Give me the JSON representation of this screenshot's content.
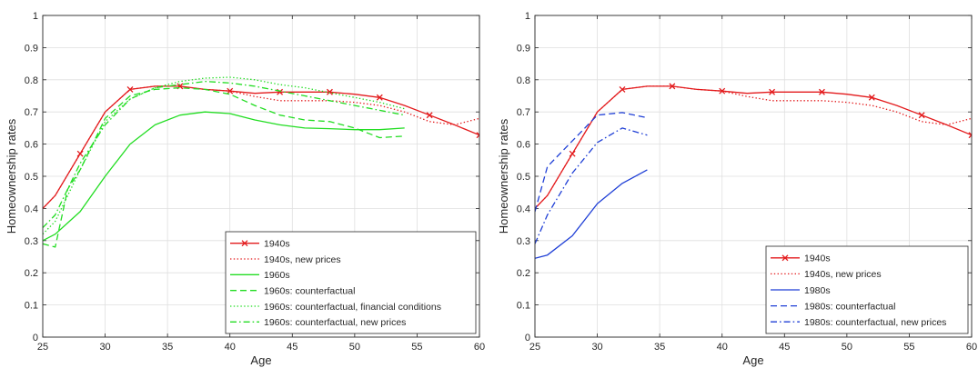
{
  "chart_data": [
    {
      "type": "line",
      "xlabel": "Age",
      "ylabel": "Homeownership rates",
      "xlim": [
        25,
        60
      ],
      "ylim": [
        0,
        1
      ],
      "xticks": [
        25,
        30,
        35,
        40,
        45,
        50,
        55,
        60
      ],
      "yticks": [
        0,
        0.1,
        0.2,
        0.3,
        0.4,
        0.5,
        0.6,
        0.7,
        0.8,
        0.9,
        1
      ],
      "grid": true,
      "legend_position": "bottom-right",
      "series": [
        {
          "name": "1940s",
          "color": "#e31a1c",
          "dash": "solid",
          "marker": "x",
          "x": [
            25,
            26,
            28,
            30,
            32,
            34,
            36,
            38,
            40,
            42,
            44,
            46,
            48,
            50,
            52,
            54,
            56,
            58,
            60
          ],
          "y": [
            0.4,
            0.44,
            0.57,
            0.7,
            0.77,
            0.78,
            0.78,
            0.77,
            0.765,
            0.758,
            0.762,
            0.762,
            0.762,
            0.755,
            0.745,
            0.72,
            0.69,
            0.66,
            0.628
          ],
          "marker_x": [
            28,
            32,
            36,
            40,
            44,
            48,
            52,
            56,
            60
          ]
        },
        {
          "name": "1940s, new prices",
          "color": "#e31a1c",
          "dash": "dotted",
          "marker": "none",
          "x": [
            25,
            26,
            28,
            30,
            32,
            34,
            36,
            38,
            40,
            42,
            44,
            46,
            48,
            50,
            52,
            54,
            56,
            58,
            60
          ],
          "y": [
            0.4,
            0.44,
            0.57,
            0.7,
            0.77,
            0.78,
            0.78,
            0.77,
            0.765,
            0.748,
            0.735,
            0.735,
            0.735,
            0.73,
            0.72,
            0.7,
            0.67,
            0.66,
            0.68
          ]
        },
        {
          "name": "1960s",
          "color": "#22dd22",
          "dash": "solid",
          "marker": "none",
          "x": [
            25,
            26,
            28,
            30,
            32,
            34,
            36,
            38,
            40,
            42,
            44,
            46,
            48,
            50,
            52,
            54
          ],
          "y": [
            0.3,
            0.32,
            0.39,
            0.5,
            0.6,
            0.66,
            0.69,
            0.7,
            0.695,
            0.675,
            0.66,
            0.65,
            0.648,
            0.645,
            0.645,
            0.65
          ]
        },
        {
          "name": "1960s: counterfactual",
          "color": "#22dd22",
          "dash": "dashed",
          "marker": "none",
          "x": [
            25,
            26,
            27,
            28,
            30,
            32,
            34,
            36,
            38,
            40,
            42,
            44,
            46,
            48,
            50,
            52,
            54
          ],
          "y": [
            0.29,
            0.28,
            0.46,
            0.52,
            0.68,
            0.75,
            0.77,
            0.775,
            0.77,
            0.755,
            0.72,
            0.69,
            0.675,
            0.67,
            0.65,
            0.62,
            0.625
          ]
        },
        {
          "name": "1960s: counterfactual, financial conditions",
          "color": "#22dd22",
          "dash": "dotted",
          "marker": "none",
          "x": [
            25,
            26,
            28,
            30,
            32,
            34,
            36,
            38,
            40,
            42,
            44,
            46,
            48,
            50,
            52,
            54
          ],
          "y": [
            0.32,
            0.36,
            0.52,
            0.67,
            0.74,
            0.775,
            0.795,
            0.805,
            0.808,
            0.8,
            0.785,
            0.775,
            0.76,
            0.745,
            0.73,
            0.71
          ]
        },
        {
          "name": "1960s: counterfactual, new prices",
          "color": "#22dd22",
          "dash": "dashdot",
          "marker": "none",
          "x": [
            25,
            26,
            28,
            30,
            32,
            34,
            36,
            38,
            40,
            42,
            44,
            46,
            48,
            50,
            52,
            54
          ],
          "y": [
            0.34,
            0.38,
            0.54,
            0.66,
            0.74,
            0.775,
            0.785,
            0.795,
            0.79,
            0.78,
            0.765,
            0.75,
            0.735,
            0.72,
            0.705,
            0.69
          ]
        }
      ]
    },
    {
      "type": "line",
      "xlabel": "Age",
      "ylabel": "Homeownership rates",
      "xlim": [
        25,
        60
      ],
      "ylim": [
        0,
        1
      ],
      "xticks": [
        25,
        30,
        35,
        40,
        45,
        50,
        55,
        60
      ],
      "yticks": [
        0,
        0.1,
        0.2,
        0.3,
        0.4,
        0.5,
        0.6,
        0.7,
        0.8,
        0.9,
        1
      ],
      "grid": true,
      "legend_position": "bottom-right",
      "series": [
        {
          "name": "1940s",
          "color": "#e31a1c",
          "dash": "solid",
          "marker": "x",
          "x": [
            25,
            26,
            28,
            30,
            32,
            34,
            36,
            38,
            40,
            42,
            44,
            46,
            48,
            50,
            52,
            54,
            56,
            58,
            60
          ],
          "y": [
            0.4,
            0.44,
            0.57,
            0.7,
            0.77,
            0.78,
            0.78,
            0.77,
            0.765,
            0.758,
            0.762,
            0.762,
            0.762,
            0.755,
            0.745,
            0.72,
            0.69,
            0.66,
            0.628
          ],
          "marker_x": [
            28,
            32,
            36,
            40,
            44,
            48,
            52,
            56,
            60
          ]
        },
        {
          "name": "1940s, new prices",
          "color": "#e31a1c",
          "dash": "dotted",
          "marker": "none",
          "x": [
            25,
            26,
            28,
            30,
            32,
            34,
            36,
            38,
            40,
            42,
            44,
            46,
            48,
            50,
            52,
            54,
            56,
            58,
            60
          ],
          "y": [
            0.4,
            0.44,
            0.57,
            0.7,
            0.77,
            0.78,
            0.78,
            0.77,
            0.765,
            0.748,
            0.735,
            0.735,
            0.735,
            0.73,
            0.72,
            0.7,
            0.67,
            0.66,
            0.68
          ]
        },
        {
          "name": "1980s",
          "color": "#1f3fd6",
          "dash": "solid",
          "marker": "none",
          "x": [
            25,
            26,
            28,
            30,
            32,
            34
          ],
          "y": [
            0.245,
            0.255,
            0.315,
            0.415,
            0.478,
            0.52
          ]
        },
        {
          "name": "1980s: counterfactual",
          "color": "#1f3fd6",
          "dash": "dashed",
          "marker": "none",
          "x": [
            25,
            26,
            28,
            30,
            32,
            34
          ],
          "y": [
            0.39,
            0.53,
            0.61,
            0.69,
            0.698,
            0.682
          ]
        },
        {
          "name": "1980s: counterfactual, new prices",
          "color": "#1f3fd6",
          "dash": "dashdot",
          "marker": "none",
          "x": [
            25,
            26,
            28,
            30,
            32,
            34
          ],
          "y": [
            0.29,
            0.38,
            0.51,
            0.605,
            0.65,
            0.628
          ]
        }
      ]
    }
  ]
}
